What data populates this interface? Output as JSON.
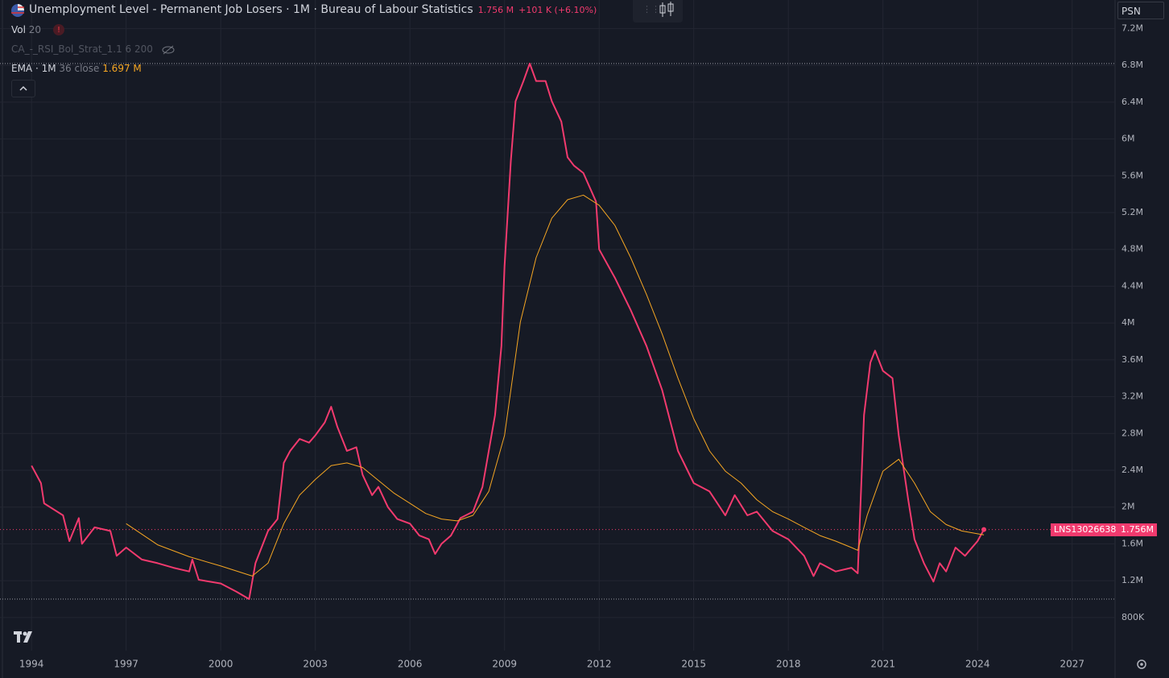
{
  "header": {
    "title": "Unemployment Level - Permanent Job Losers · 1M · Bureau of Labour Statistics",
    "last": "1.756 M",
    "change": "+101 K (+6.10%)",
    "vol": "Vol",
    "vol_len": "20",
    "indicator": "CA_-_RSI_Bol_Strat_1.1 6 200",
    "ema_name": "EMA · 1M",
    "ema_params": "36 close",
    "ema_value": "1.697 M",
    "symbol_label": "LNS13026638",
    "price_label": "1.756M",
    "top_right": "PSN"
  },
  "chart_data": {
    "type": "line",
    "grid": true,
    "xlim": [
      1993.0,
      2028.36
    ],
    "ylim": [
      0.44,
      7.51
    ],
    "xticks": [
      1994,
      1997,
      2000,
      2003,
      2006,
      2009,
      2012,
      2015,
      2018,
      2021,
      2024,
      2027
    ],
    "yticks": [
      {
        "value": 0.8,
        "label": "800K"
      },
      {
        "value": 1.2,
        "label": "1.2M"
      },
      {
        "value": 1.6,
        "label": "1.6M"
      },
      {
        "value": 2,
        "label": "2M"
      },
      {
        "value": 2.4,
        "label": "2.4M"
      },
      {
        "value": 2.8,
        "label": "2.8M"
      },
      {
        "value": 3.2,
        "label": "3.2M"
      },
      {
        "value": 3.6,
        "label": "3.6M"
      },
      {
        "value": 4,
        "label": "4M"
      },
      {
        "value": 4.4,
        "label": "4.4M"
      },
      {
        "value": 4.8,
        "label": "4.8M"
      },
      {
        "value": 5.2,
        "label": "5.2M"
      },
      {
        "value": 5.6,
        "label": "5.6M"
      },
      {
        "value": 6,
        "label": "6M"
      },
      {
        "value": 6.4,
        "label": "6.4M"
      },
      {
        "value": 6.8,
        "label": "6.8M"
      },
      {
        "value": 7.2,
        "label": "7.2M"
      }
    ],
    "series": [
      {
        "name": "LNS13026638",
        "color": "#f23a6e",
        "x": [
          1994.0,
          1994.3,
          1994.4,
          1995.0,
          1995.2,
          1995.5,
          1995.6,
          1996.0,
          1996.5,
          1996.7,
          1997.0,
          1997.5,
          1998.0,
          1998.5,
          1999.0,
          1999.1,
          1999.3,
          2000.0,
          2000.5,
          2000.9,
          2001.1,
          2001.5,
          2001.8,
          2002.0,
          2002.2,
          2002.5,
          2002.8,
          2003.0,
          2003.3,
          2003.5,
          2003.7,
          2004.0,
          2004.3,
          2004.5,
          2004.8,
          2005.0,
          2005.3,
          2005.6,
          2006.0,
          2006.3,
          2006.6,
          2006.8,
          2007.0,
          2007.3,
          2007.6,
          2008.0,
          2008.3,
          2008.5,
          2008.7,
          2008.9,
          2009.0,
          2009.2,
          2009.35,
          2009.6,
          2009.8,
          2010.0,
          2010.3,
          2010.5,
          2010.8,
          2011.0,
          2011.2,
          2011.5,
          2011.9,
          2012.0,
          2012.5,
          2013.0,
          2013.5,
          2014.0,
          2014.5,
          2015.0,
          2015.5,
          2016.0,
          2016.3,
          2016.7,
          2017.0,
          2017.5,
          2018.0,
          2018.5,
          2018.8,
          2019.0,
          2019.5,
          2020.0,
          2020.2,
          2020.4,
          2020.6,
          2020.75,
          2021.0,
          2021.3,
          2021.5,
          2021.8,
          2022.0,
          2022.3,
          2022.6,
          2022.8,
          2023.0,
          2023.3,
          2023.6,
          2024.0,
          2024.2
        ],
        "values": [
          2.45,
          2.26,
          2.04,
          1.91,
          1.63,
          1.88,
          1.6,
          1.78,
          1.74,
          1.47,
          1.56,
          1.43,
          1.39,
          1.34,
          1.3,
          1.43,
          1.21,
          1.17,
          1.08,
          1.0,
          1.39,
          1.74,
          1.87,
          2.48,
          2.61,
          2.74,
          2.7,
          2.78,
          2.92,
          3.09,
          2.87,
          2.61,
          2.65,
          2.35,
          2.13,
          2.22,
          2.0,
          1.87,
          1.82,
          1.69,
          1.65,
          1.49,
          1.6,
          1.69,
          1.88,
          1.95,
          2.22,
          2.61,
          3.0,
          3.75,
          4.62,
          5.76,
          6.41,
          6.63,
          6.82,
          6.63,
          6.63,
          6.41,
          6.19,
          5.8,
          5.71,
          5.63,
          5.32,
          4.8,
          4.49,
          4.14,
          3.75,
          3.27,
          2.61,
          2.26,
          2.17,
          1.91,
          2.13,
          1.91,
          1.95,
          1.74,
          1.65,
          1.47,
          1.25,
          1.39,
          1.3,
          1.34,
          1.28,
          3.0,
          3.57,
          3.7,
          3.48,
          3.4,
          2.78,
          2.08,
          1.65,
          1.39,
          1.19,
          1.39,
          1.3,
          1.56,
          1.47,
          1.63,
          1.756
        ]
      },
      {
        "name": "EMA",
        "color": "#f5a623",
        "x": [
          1997.0,
          1998.0,
          1999.0,
          2000.0,
          2001.0,
          2001.5,
          2002.0,
          2002.5,
          2003.0,
          2003.5,
          2004.0,
          2004.5,
          2005.0,
          2005.5,
          2006.0,
          2006.5,
          2007.0,
          2007.5,
          2008.0,
          2008.5,
          2009.0,
          2009.5,
          2010.0,
          2010.5,
          2011.0,
          2011.5,
          2012.0,
          2012.5,
          2013.0,
          2013.5,
          2014.0,
          2014.5,
          2015.0,
          2015.5,
          2016.0,
          2016.5,
          2017.0,
          2017.5,
          2018.0,
          2018.5,
          2019.0,
          2019.5,
          2020.0,
          2020.2,
          2020.5,
          2021.0,
          2021.5,
          2022.0,
          2022.5,
          2023.0,
          2023.5,
          2024.0,
          2024.2
        ],
        "values": [
          1.82,
          1.59,
          1.46,
          1.36,
          1.25,
          1.39,
          1.82,
          2.13,
          2.3,
          2.45,
          2.48,
          2.43,
          2.29,
          2.15,
          2.04,
          1.93,
          1.87,
          1.85,
          1.91,
          2.17,
          2.78,
          4.01,
          4.71,
          5.14,
          5.34,
          5.39,
          5.28,
          5.06,
          4.71,
          4.31,
          3.88,
          3.4,
          2.96,
          2.61,
          2.39,
          2.26,
          2.08,
          1.95,
          1.87,
          1.78,
          1.69,
          1.63,
          1.56,
          1.53,
          1.91,
          2.39,
          2.52,
          2.26,
          1.95,
          1.81,
          1.74,
          1.71,
          1.697
        ]
      }
    ]
  }
}
